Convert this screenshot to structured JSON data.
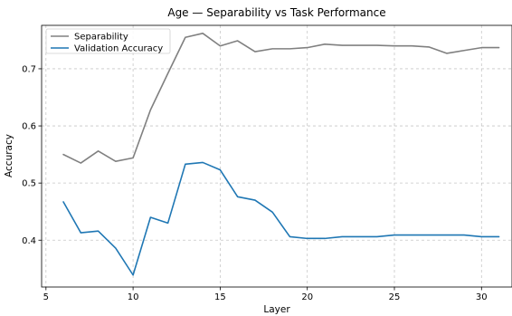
{
  "chart_data": {
    "type": "line",
    "title": "Age — Separability vs Task Performance",
    "xlabel": "Layer",
    "ylabel": "Accuracy",
    "xlim": [
      4.75,
      31.75
    ],
    "ylim": [
      0.318,
      0.776
    ],
    "xticks": [
      5,
      10,
      15,
      20,
      25,
      30
    ],
    "yticks": [
      0.4,
      0.5,
      0.6,
      0.7
    ],
    "grid": true,
    "legend_position": "top-left",
    "x": [
      6,
      7,
      8,
      9,
      10,
      11,
      12,
      13,
      14,
      15,
      16,
      17,
      18,
      19,
      20,
      21,
      22,
      23,
      24,
      25,
      26,
      27,
      28,
      29,
      30,
      31
    ],
    "series": [
      {
        "name": "Separability",
        "color": "#808080",
        "values": [
          0.55,
          0.535,
          0.556,
          0.538,
          0.544,
          0.628,
          0.692,
          0.755,
          0.762,
          0.74,
          0.749,
          0.73,
          0.735,
          0.735,
          0.737,
          0.743,
          0.741,
          0.741,
          0.741,
          0.74,
          0.74,
          0.738,
          0.727,
          0.732,
          0.737,
          0.737
        ]
      },
      {
        "name": "Validation Accuracy",
        "color": "#1f77b4",
        "values": [
          0.467,
          0.413,
          0.416,
          0.386,
          0.339,
          0.44,
          0.43,
          0.533,
          0.536,
          0.523,
          0.476,
          0.47,
          0.449,
          0.406,
          0.403,
          0.403,
          0.406,
          0.406,
          0.406,
          0.409,
          0.409,
          0.409,
          0.409,
          0.409,
          0.406,
          0.406
        ]
      }
    ]
  }
}
